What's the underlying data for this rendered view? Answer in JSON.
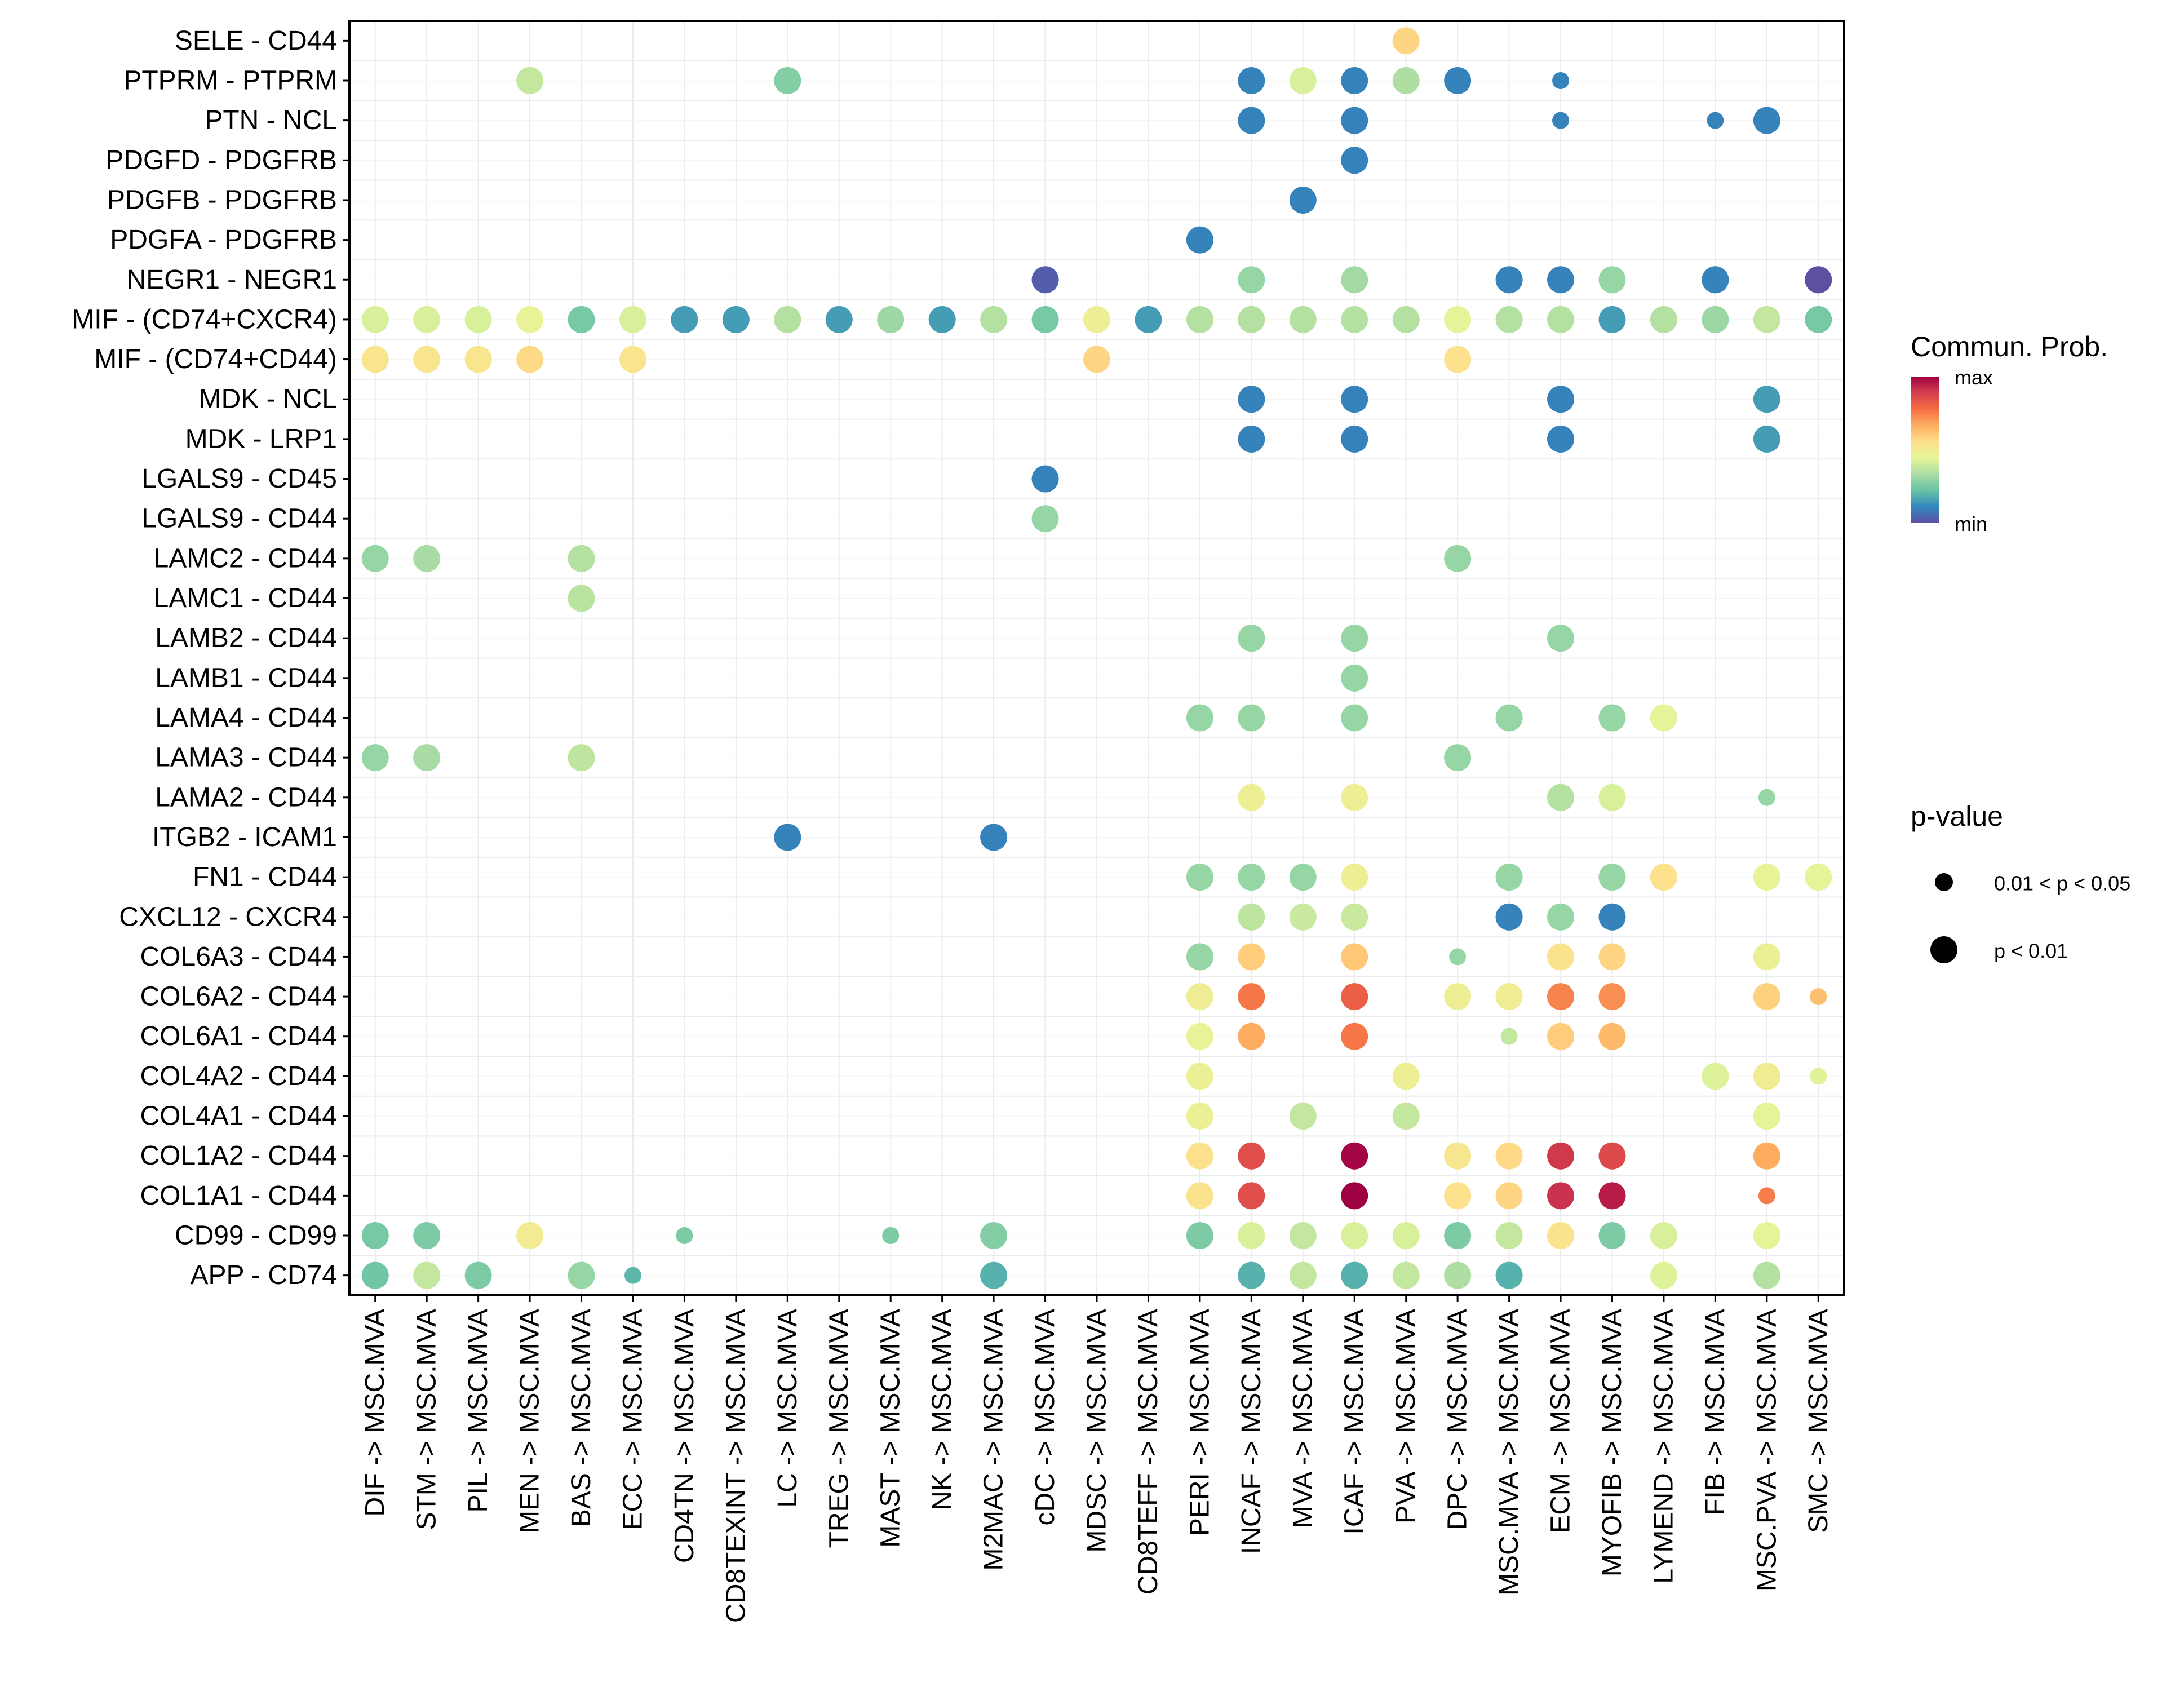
{
  "chart_data": {
    "type": "scatter",
    "subtype": "dot-plot",
    "title": "",
    "xlabel": "",
    "ylabel": "",
    "grid": true,
    "x_categories": [
      "DIF -> MSC.MVA",
      "STM -> MSC.MVA",
      "PIL -> MSC.MVA",
      "MEN -> MSC.MVA",
      "BAS -> MSC.MVA",
      "ECC -> MSC.MVA",
      "CD4TN -> MSC.MVA",
      "CD8TEXINT -> MSC.MVA",
      "LC -> MSC.MVA",
      "TREG -> MSC.MVA",
      "MAST -> MSC.MVA",
      "NK -> MSC.MVA",
      "M2MAC -> MSC.MVA",
      "cDC -> MSC.MVA",
      "MDSC -> MSC.MVA",
      "CD8TEFF -> MSC.MVA",
      "PERI -> MSC.MVA",
      "INCAF -> MSC.MVA",
      "MVA -> MSC.MVA",
      "ICAF -> MSC.MVA",
      "PVA -> MSC.MVA",
      "DPC -> MSC.MVA",
      "MSC.MVA -> MSC.MVA",
      "ECM -> MSC.MVA",
      "MYOFIB -> MSC.MVA",
      "LYMEND -> MSC.MVA",
      "FIB -> MSC.MVA",
      "MSC.PVA -> MSC.MVA",
      "SMC -> MSC.MVA"
    ],
    "y_categories": [
      "SELE - CD44",
      "PTPRM - PTPRM",
      "PTN - NCL",
      "PDGFD - PDGFRB",
      "PDGFB - PDGFRB",
      "PDGFA - PDGFRB",
      "NEGR1 - NEGR1",
      "MIF - (CD74+CXCR4)",
      "MIF - (CD74+CD44)",
      "MDK - NCL",
      "MDK - LRP1",
      "LGALS9 - CD45",
      "LGALS9 - CD44",
      "LAMC2 - CD44",
      "LAMC1 - CD44",
      "LAMB2 - CD44",
      "LAMB1 - CD44",
      "LAMA4 - CD44",
      "LAMA3 - CD44",
      "LAMA2 - CD44",
      "ITGB2 - ICAM1",
      "FN1 - CD44",
      "CXCL12 - CXCR4",
      "COL6A3 - CD44",
      "COL6A2 - CD44",
      "COL6A1 - CD44",
      "COL4A2 - CD44",
      "COL4A1 - CD44",
      "COL1A2 - CD44",
      "COL1A1 - CD44",
      "CD99 - CD99",
      "APP - CD74"
    ],
    "value_scale": {
      "name": "Commun. Prob.",
      "min_label": "min",
      "max_label": "max",
      "range": [
        0,
        1
      ],
      "palette": "Spectral"
    },
    "size_legend": {
      "title": "p-value",
      "levels": [
        {
          "code": 2,
          "label": "0.01 < p < 0.05"
        },
        {
          "code": 1,
          "label": "p < 0.01"
        }
      ]
    },
    "points_format": [
      "x_index",
      "y_index",
      "relative_prob",
      "pvalue_code"
    ],
    "points": [
      [
        20,
        0,
        0.58,
        1
      ],
      [
        3,
        1,
        0.38,
        1
      ],
      [
        8,
        1,
        0.27,
        1
      ],
      [
        17,
        1,
        0.1,
        1
      ],
      [
        18,
        1,
        0.42,
        1
      ],
      [
        19,
        1,
        0.1,
        1
      ],
      [
        20,
        1,
        0.34,
        1
      ],
      [
        21,
        1,
        0.1,
        1
      ],
      [
        23,
        1,
        0.1,
        2
      ],
      [
        17,
        2,
        0.1,
        1
      ],
      [
        19,
        2,
        0.1,
        1
      ],
      [
        23,
        2,
        0.1,
        2
      ],
      [
        26,
        2,
        0.1,
        2
      ],
      [
        27,
        2,
        0.1,
        1
      ],
      [
        19,
        3,
        0.1,
        1
      ],
      [
        18,
        4,
        0.1,
        1
      ],
      [
        16,
        5,
        0.1,
        1
      ],
      [
        13,
        6,
        0.03,
        1
      ],
      [
        17,
        6,
        0.3,
        1
      ],
      [
        19,
        6,
        0.32,
        1
      ],
      [
        22,
        6,
        0.1,
        1
      ],
      [
        23,
        6,
        0.1,
        1
      ],
      [
        24,
        6,
        0.3,
        1
      ],
      [
        26,
        6,
        0.1,
        1
      ],
      [
        28,
        6,
        0.0,
        1
      ],
      [
        0,
        7,
        0.42,
        1
      ],
      [
        1,
        7,
        0.42,
        1
      ],
      [
        2,
        7,
        0.42,
        1
      ],
      [
        3,
        7,
        0.46,
        1
      ],
      [
        4,
        7,
        0.25,
        1
      ],
      [
        5,
        7,
        0.42,
        1
      ],
      [
        6,
        7,
        0.15,
        1
      ],
      [
        7,
        7,
        0.15,
        1
      ],
      [
        8,
        7,
        0.35,
        1
      ],
      [
        9,
        7,
        0.15,
        1
      ],
      [
        10,
        7,
        0.31,
        1
      ],
      [
        11,
        7,
        0.15,
        1
      ],
      [
        12,
        7,
        0.35,
        1
      ],
      [
        13,
        7,
        0.25,
        1
      ],
      [
        14,
        7,
        0.48,
        1
      ],
      [
        15,
        7,
        0.15,
        1
      ],
      [
        16,
        7,
        0.35,
        1
      ],
      [
        17,
        7,
        0.35,
        1
      ],
      [
        18,
        7,
        0.35,
        1
      ],
      [
        19,
        7,
        0.35,
        1
      ],
      [
        20,
        7,
        0.35,
        1
      ],
      [
        21,
        7,
        0.44,
        1
      ],
      [
        22,
        7,
        0.35,
        1
      ],
      [
        23,
        7,
        0.35,
        1
      ],
      [
        24,
        7,
        0.15,
        1
      ],
      [
        25,
        7,
        0.35,
        1
      ],
      [
        26,
        7,
        0.31,
        1
      ],
      [
        27,
        7,
        0.38,
        1
      ],
      [
        28,
        7,
        0.25,
        1
      ],
      [
        0,
        8,
        0.53,
        1
      ],
      [
        1,
        8,
        0.53,
        1
      ],
      [
        2,
        8,
        0.53,
        1
      ],
      [
        3,
        8,
        0.57,
        1
      ],
      [
        5,
        8,
        0.53,
        1
      ],
      [
        14,
        8,
        0.58,
        1
      ],
      [
        21,
        8,
        0.55,
        1
      ],
      [
        17,
        9,
        0.1,
        1
      ],
      [
        19,
        9,
        0.1,
        1
      ],
      [
        23,
        9,
        0.1,
        1
      ],
      [
        27,
        9,
        0.15,
        1
      ],
      [
        17,
        10,
        0.1,
        1
      ],
      [
        19,
        10,
        0.1,
        1
      ],
      [
        23,
        10,
        0.1,
        1
      ],
      [
        27,
        10,
        0.15,
        1
      ],
      [
        13,
        11,
        0.1,
        1
      ],
      [
        13,
        12,
        0.3,
        1
      ],
      [
        0,
        13,
        0.3,
        1
      ],
      [
        1,
        13,
        0.33,
        1
      ],
      [
        4,
        13,
        0.35,
        1
      ],
      [
        21,
        13,
        0.3,
        1
      ],
      [
        4,
        14,
        0.36,
        1
      ],
      [
        17,
        15,
        0.3,
        1
      ],
      [
        19,
        15,
        0.3,
        1
      ],
      [
        23,
        15,
        0.3,
        1
      ],
      [
        19,
        16,
        0.3,
        1
      ],
      [
        16,
        17,
        0.3,
        1
      ],
      [
        17,
        17,
        0.3,
        1
      ],
      [
        19,
        17,
        0.3,
        1
      ],
      [
        22,
        17,
        0.3,
        1
      ],
      [
        24,
        17,
        0.3,
        1
      ],
      [
        25,
        17,
        0.44,
        1
      ],
      [
        0,
        18,
        0.3,
        1
      ],
      [
        1,
        18,
        0.33,
        1
      ],
      [
        4,
        18,
        0.37,
        1
      ],
      [
        21,
        18,
        0.3,
        1
      ],
      [
        17,
        19,
        0.48,
        1
      ],
      [
        19,
        19,
        0.48,
        1
      ],
      [
        23,
        19,
        0.35,
        1
      ],
      [
        24,
        19,
        0.42,
        1
      ],
      [
        27,
        19,
        0.3,
        2
      ],
      [
        8,
        20,
        0.1,
        1
      ],
      [
        12,
        20,
        0.1,
        1
      ],
      [
        16,
        21,
        0.3,
        1
      ],
      [
        17,
        21,
        0.3,
        1
      ],
      [
        18,
        21,
        0.3,
        1
      ],
      [
        19,
        21,
        0.48,
        1
      ],
      [
        22,
        21,
        0.3,
        1
      ],
      [
        24,
        21,
        0.3,
        1
      ],
      [
        25,
        21,
        0.55,
        1
      ],
      [
        27,
        21,
        0.46,
        1
      ],
      [
        28,
        21,
        0.44,
        1
      ],
      [
        17,
        22,
        0.37,
        1
      ],
      [
        18,
        22,
        0.39,
        1
      ],
      [
        19,
        22,
        0.39,
        1
      ],
      [
        22,
        22,
        0.1,
        1
      ],
      [
        23,
        22,
        0.3,
        1
      ],
      [
        24,
        22,
        0.1,
        1
      ],
      [
        16,
        23,
        0.3,
        1
      ],
      [
        17,
        23,
        0.6,
        1
      ],
      [
        19,
        23,
        0.61,
        1
      ],
      [
        21,
        23,
        0.3,
        2
      ],
      [
        23,
        23,
        0.54,
        1
      ],
      [
        24,
        23,
        0.58,
        1
      ],
      [
        27,
        23,
        0.47,
        1
      ],
      [
        16,
        24,
        0.49,
        1
      ],
      [
        17,
        24,
        0.76,
        1
      ],
      [
        19,
        24,
        0.81,
        1
      ],
      [
        21,
        24,
        0.48,
        1
      ],
      [
        22,
        24,
        0.49,
        1
      ],
      [
        23,
        24,
        0.74,
        1
      ],
      [
        24,
        24,
        0.72,
        1
      ],
      [
        27,
        24,
        0.59,
        1
      ],
      [
        28,
        24,
        0.63,
        2
      ],
      [
        16,
        25,
        0.46,
        1
      ],
      [
        17,
        25,
        0.67,
        1
      ],
      [
        19,
        25,
        0.76,
        1
      ],
      [
        22,
        25,
        0.38,
        2
      ],
      [
        23,
        25,
        0.6,
        1
      ],
      [
        24,
        25,
        0.64,
        1
      ],
      [
        16,
        26,
        0.47,
        1
      ],
      [
        20,
        26,
        0.48,
        1
      ],
      [
        26,
        26,
        0.43,
        1
      ],
      [
        27,
        26,
        0.49,
        1
      ],
      [
        28,
        26,
        0.43,
        2
      ],
      [
        16,
        27,
        0.47,
        1
      ],
      [
        18,
        27,
        0.38,
        1
      ],
      [
        20,
        27,
        0.38,
        1
      ],
      [
        27,
        27,
        0.44,
        1
      ],
      [
        16,
        28,
        0.55,
        1
      ],
      [
        17,
        28,
        0.85,
        1
      ],
      [
        19,
        28,
        0.99,
        1
      ],
      [
        21,
        28,
        0.52,
        1
      ],
      [
        22,
        28,
        0.57,
        1
      ],
      [
        23,
        28,
        0.9,
        1
      ],
      [
        24,
        28,
        0.86,
        1
      ],
      [
        27,
        28,
        0.67,
        1
      ],
      [
        16,
        29,
        0.54,
        1
      ],
      [
        17,
        29,
        0.85,
        1
      ],
      [
        19,
        29,
        1.0,
        1
      ],
      [
        21,
        29,
        0.55,
        1
      ],
      [
        22,
        29,
        0.58,
        1
      ],
      [
        23,
        29,
        0.91,
        1
      ],
      [
        24,
        29,
        0.95,
        1
      ],
      [
        27,
        29,
        0.75,
        2
      ],
      [
        0,
        30,
        0.25,
        1
      ],
      [
        1,
        30,
        0.26,
        1
      ],
      [
        3,
        30,
        0.5,
        1
      ],
      [
        6,
        30,
        0.26,
        2
      ],
      [
        10,
        30,
        0.26,
        2
      ],
      [
        12,
        30,
        0.27,
        1
      ],
      [
        16,
        30,
        0.26,
        1
      ],
      [
        17,
        30,
        0.42,
        1
      ],
      [
        18,
        30,
        0.38,
        1
      ],
      [
        19,
        30,
        0.42,
        1
      ],
      [
        20,
        30,
        0.42,
        1
      ],
      [
        21,
        30,
        0.26,
        1
      ],
      [
        22,
        30,
        0.38,
        1
      ],
      [
        23,
        30,
        0.54,
        1
      ],
      [
        24,
        30,
        0.26,
        1
      ],
      [
        25,
        30,
        0.42,
        1
      ],
      [
        27,
        30,
        0.44,
        1
      ],
      [
        0,
        31,
        0.24,
        1
      ],
      [
        1,
        31,
        0.38,
        1
      ],
      [
        2,
        31,
        0.26,
        1
      ],
      [
        4,
        31,
        0.3,
        1
      ],
      [
        5,
        31,
        0.2,
        2
      ],
      [
        12,
        31,
        0.19,
        1
      ],
      [
        17,
        31,
        0.19,
        1
      ],
      [
        18,
        31,
        0.38,
        1
      ],
      [
        19,
        31,
        0.19,
        1
      ],
      [
        20,
        31,
        0.38,
        1
      ],
      [
        21,
        31,
        0.34,
        1
      ],
      [
        22,
        31,
        0.19,
        1
      ],
      [
        25,
        31,
        0.43,
        1
      ],
      [
        27,
        31,
        0.35,
        1
      ]
    ]
  },
  "palette_stops": [
    "#5e4fa2",
    "#3288bd",
    "#66c2a5",
    "#abdda4",
    "#e6f598",
    "#fee08b",
    "#fdae61",
    "#f46d43",
    "#d53e4f",
    "#9e0142"
  ]
}
